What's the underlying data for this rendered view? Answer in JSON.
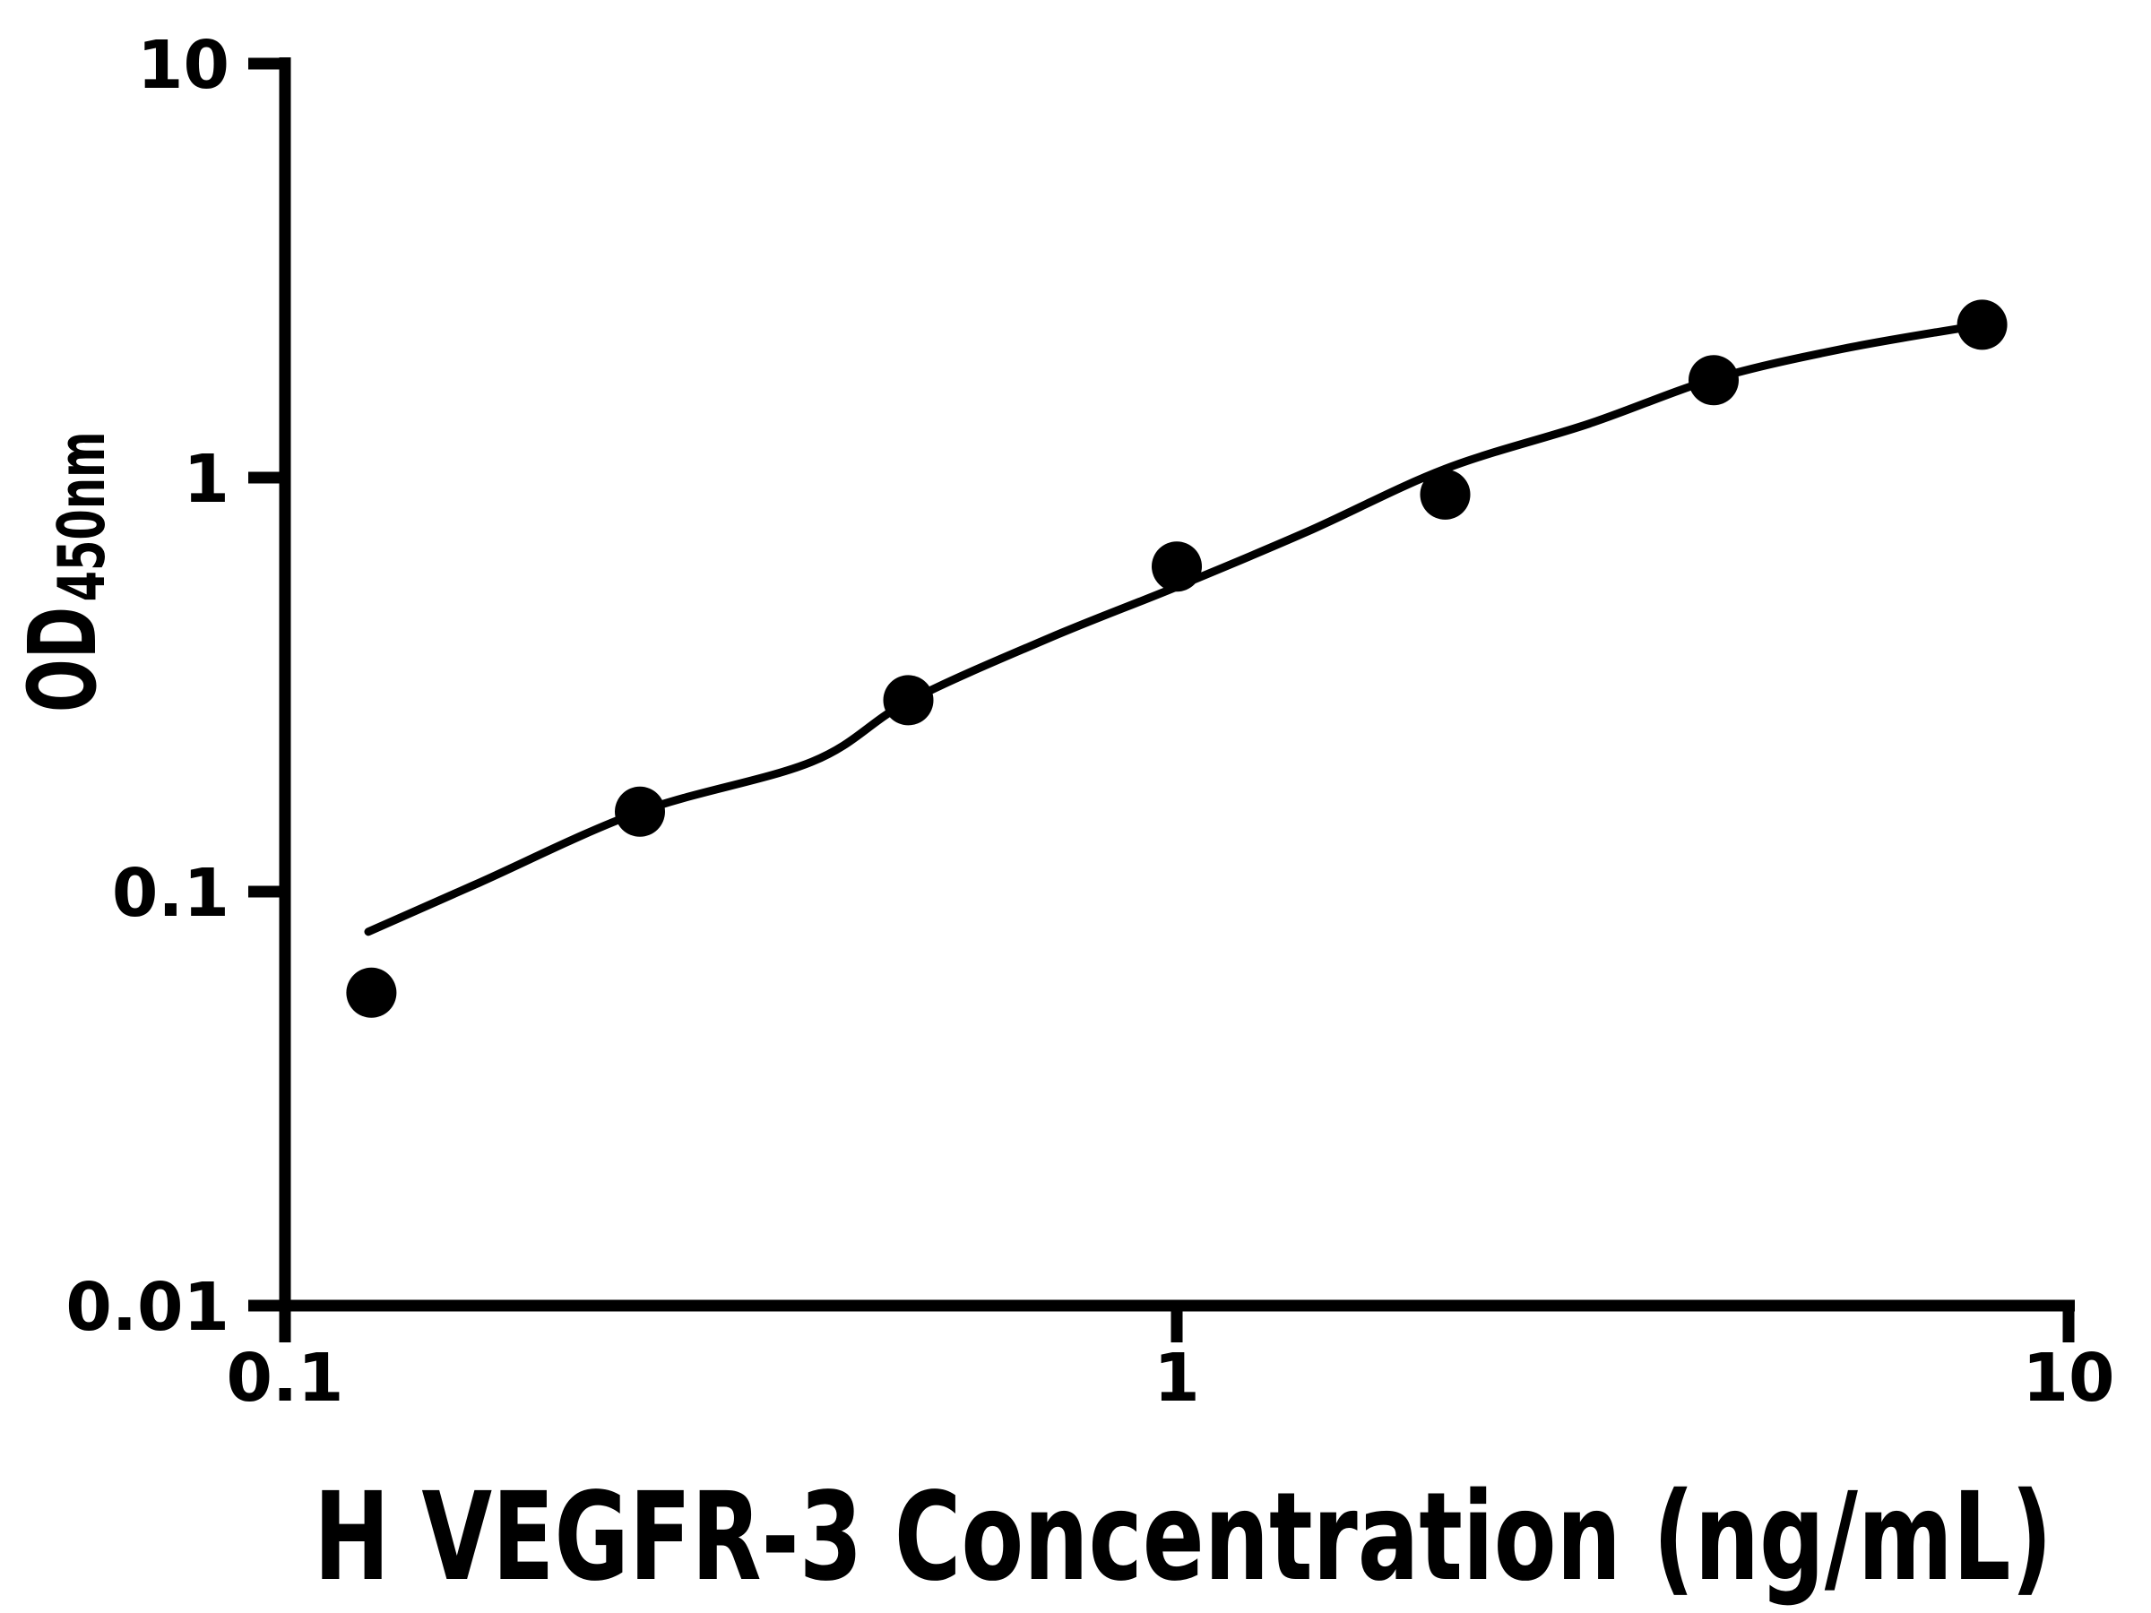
{
  "figure": {
    "background_color": "#ffffff",
    "ink_color": "#000000"
  },
  "chart_data": {
    "type": "scatter",
    "title": "",
    "xlabel": "H VEGFR-3 Concentration (ng/mL)",
    "ylabel": "OD450nm",
    "ylabel_main": "OD",
    "ylabel_sub": "450nm",
    "x_scale": "log",
    "y_scale": "log",
    "xlim": [
      0.1,
      10
    ],
    "ylim": [
      0.01,
      10
    ],
    "grid": false,
    "legend": false,
    "x_ticks": [
      {
        "value": 0.1,
        "label": "0.1"
      },
      {
        "value": 1,
        "label": "1"
      },
      {
        "value": 10,
        "label": "10"
      }
    ],
    "y_ticks": [
      {
        "value": 10,
        "label": "10"
      },
      {
        "value": 1,
        "label": "1"
      },
      {
        "value": 0.1,
        "label": "0.1"
      },
      {
        "value": 0.01,
        "label": "0.01"
      }
    ],
    "series": [
      {
        "name": "standard-curve-points",
        "marker": "filled-circle",
        "color": "#000000",
        "points": [
          {
            "x": 0.125,
            "y": 0.057
          },
          {
            "x": 0.25,
            "y": 0.156
          },
          {
            "x": 0.5,
            "y": 0.29
          },
          {
            "x": 1,
            "y": 0.61
          },
          {
            "x": 2,
            "y": 0.91
          },
          {
            "x": 4,
            "y": 1.72
          },
          {
            "x": 8,
            "y": 2.34
          }
        ]
      }
    ],
    "fit_curve": [
      {
        "x": 0.124,
        "y": 0.08
      },
      {
        "x": 0.165,
        "y": 0.105
      },
      {
        "x": 0.25,
        "y": 0.156
      },
      {
        "x": 0.39,
        "y": 0.206
      },
      {
        "x": 0.5,
        "y": 0.288
      },
      {
        "x": 0.72,
        "y": 0.41
      },
      {
        "x": 1,
        "y": 0.545
      },
      {
        "x": 1.4,
        "y": 0.74
      },
      {
        "x": 2,
        "y": 1.05
      },
      {
        "x": 2.9,
        "y": 1.35
      },
      {
        "x": 4,
        "y": 1.73
      },
      {
        "x": 5.6,
        "y": 2.05
      },
      {
        "x": 8,
        "y": 2.34
      }
    ]
  }
}
